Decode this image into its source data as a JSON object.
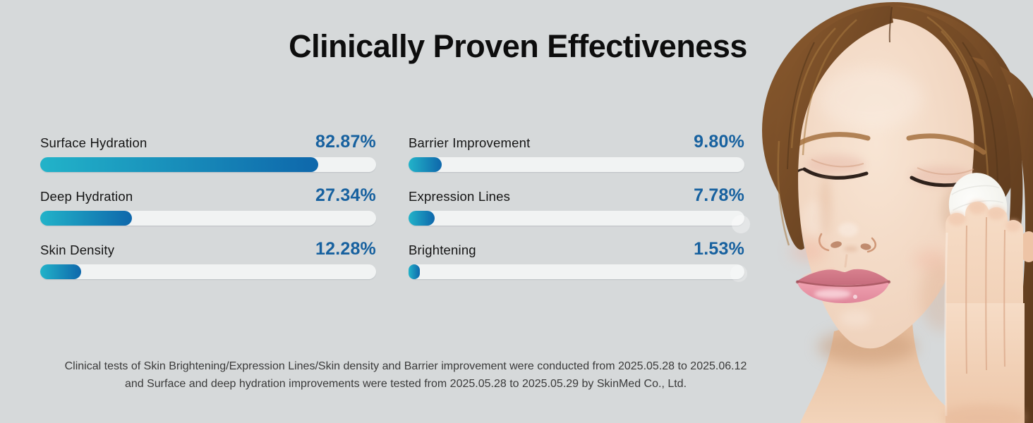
{
  "theme": {
    "background": "#d6d9da",
    "title_color": "#0d0d0d",
    "label_color": "#141414",
    "accent_blue": "#17619f",
    "bar_gradient_start": "#22b3c9",
    "bar_gradient_end": "#0e67ab",
    "track_color": "#f1f3f3",
    "footnote_color": "#3a3a3a"
  },
  "header": {
    "title": "Clinically Proven Effectiveness"
  },
  "metrics": {
    "items": [
      {
        "label": "Surface Hydration",
        "value_text": "82.87%",
        "percent": 82.87
      },
      {
        "label": "Deep Hydration",
        "value_text": "27.34%",
        "percent": 27.34
      },
      {
        "label": "Skin Density",
        "value_text": "12.28%",
        "percent": 12.28
      },
      {
        "label": "Barrier Improvement",
        "value_text": "9.80%",
        "percent": 9.8
      },
      {
        "label": "Expression Lines",
        "value_text": "7.78%",
        "percent": 7.78
      },
      {
        "label": "Brightening",
        "value_text": "1.53%",
        "percent": 1.53
      }
    ]
  },
  "footnote": {
    "line1": "Clinical tests of Skin Brightening/Expression Lines/Skin density and Barrier improvement were conducted from 2025.05.28 to 2025.06.12",
    "line2": "and Surface and deep hydration improvements were tested from 2025.05.28 to 2025.05.29 by SkinMed  Co., Ltd."
  },
  "photo": {
    "description": "woman-closed-eyes-holding-cotton-pad-to-cheek"
  },
  "chart_data": {
    "type": "bar",
    "orientation": "horizontal",
    "title": "Clinically Proven Effectiveness",
    "categories": [
      "Surface Hydration",
      "Deep Hydration",
      "Skin Density",
      "Barrier Improvement",
      "Expression Lines",
      "Brightening"
    ],
    "values": [
      82.87,
      27.34,
      12.28,
      9.8,
      7.78,
      1.53
    ],
    "unit": "%",
    "xlim": [
      0,
      100
    ],
    "grid": false,
    "legend": false,
    "layout": "two columns of three bars (left: hydration/density, right: barrier/lines/brightening)",
    "footnote": "Clinical tests of Skin Brightening/Expression Lines/Skin density and Barrier improvement were conducted from 2025.05.28 to 2025.06.12 and Surface and deep hydration improvements were tested from 2025.05.28 to 2025.05.29 by SkinMed Co., Ltd."
  }
}
